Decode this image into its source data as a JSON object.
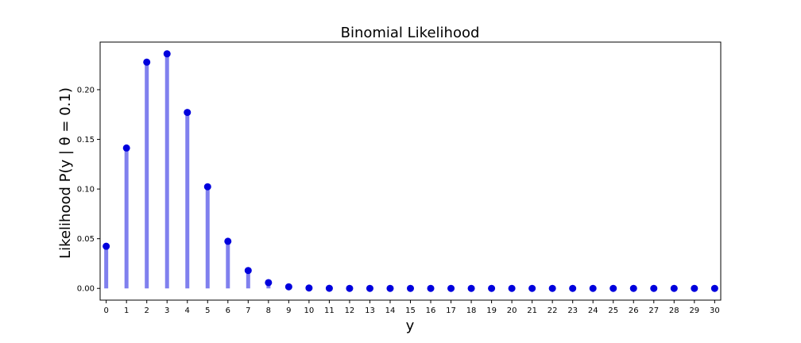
{
  "chart_data": {
    "type": "stem",
    "title": "Binomial Likelihood",
    "xlabel": "y",
    "ylabel": "Likelihood P(y | θ = 0.1)",
    "x": [
      0,
      1,
      2,
      3,
      4,
      5,
      6,
      7,
      8,
      9,
      10,
      11,
      12,
      13,
      14,
      15,
      16,
      17,
      18,
      19,
      20,
      21,
      22,
      23,
      24,
      25,
      26,
      27,
      28,
      29,
      30
    ],
    "values": [
      0.0424,
      0.1413,
      0.2277,
      0.2361,
      0.1771,
      0.1023,
      0.0474,
      0.018,
      0.0058,
      0.0016,
      0.0004,
      0.0001,
      0.0,
      0.0,
      0.0,
      0.0,
      0.0,
      0.0,
      0.0,
      0.0,
      0.0,
      0.0,
      0.0,
      0.0,
      0.0,
      0.0,
      0.0,
      0.0,
      0.0,
      0.0,
      0.0
    ],
    "xlim": [
      -0.3,
      30.3
    ],
    "ylim": [
      -0.0118,
      0.2479
    ],
    "yticks": [
      0.0,
      0.05,
      0.1,
      0.15,
      0.2
    ],
    "ytick_labels": [
      "0.00",
      "0.05",
      "0.10",
      "0.15",
      "0.20"
    ],
    "xticks": [
      0,
      1,
      2,
      3,
      4,
      5,
      6,
      7,
      8,
      9,
      10,
      11,
      12,
      13,
      14,
      15,
      16,
      17,
      18,
      19,
      20,
      21,
      22,
      23,
      24,
      25,
      26,
      27,
      28,
      29,
      30
    ],
    "xtick_labels": [
      "0",
      "1",
      "2",
      "3",
      "4",
      "5",
      "6",
      "7",
      "8",
      "9",
      "10",
      "11",
      "12",
      "13",
      "14",
      "15",
      "16",
      "17",
      "18",
      "19",
      "20",
      "21",
      "22",
      "23",
      "24",
      "25",
      "26",
      "27",
      "28",
      "29",
      "30"
    ],
    "grid": false,
    "colors": {
      "marker": "#0000dd",
      "stem": "#8080ee",
      "axis": "#000000"
    }
  }
}
